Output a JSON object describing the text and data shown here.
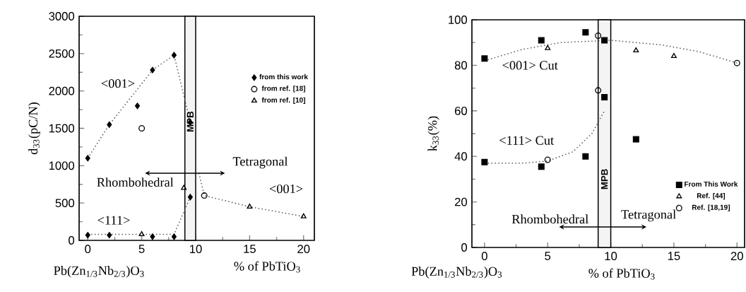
{
  "chart_data": [
    {
      "type": "scatter",
      "xlabel": "% of PbTiO$_{3}$",
      "ylabel": "d$_{33}$(pC/N)",
      "xlim": [
        -0.8,
        21
      ],
      "ylim": [
        0,
        3000
      ],
      "xticks": [
        0,
        5,
        10,
        15,
        20
      ],
      "yticks": [
        0,
        500,
        1000,
        1500,
        2000,
        2500,
        3000
      ],
      "legend": "right",
      "grid": false,
      "series": [
        {
          "name": "from this work",
          "marker": "diamond",
          "color": "#000000",
          "x": [
            0,
            2,
            4.6,
            6,
            8,
            9.5,
            9.5,
            0,
            2,
            6,
            8
          ],
          "values": [
            1100,
            1550,
            1800,
            2280,
            2480,
            1580,
            580,
            70,
            70,
            50,
            50
          ]
        },
        {
          "name": "from ref. [18]",
          "marker": "circle",
          "color": "#000000",
          "x": [
            5,
            10.8
          ],
          "values": [
            1500,
            600
          ]
        },
        {
          "name": "from ref. [10]",
          "marker": "triangle",
          "color": "#000000",
          "x": [
            5,
            8.9,
            15,
            20
          ],
          "values": [
            80,
            700,
            450,
            320
          ]
        },
        {
          "type": "line",
          "marker": "none",
          "line_style": "dotted",
          "color": "#555555",
          "x": [
            0,
            2,
            6,
            8,
            9.5
          ],
          "values": [
            1100,
            1550,
            2280,
            2480,
            1580
          ]
        },
        {
          "type": "line",
          "marker": "none",
          "line_style": "dotted",
          "color": "#555555",
          "x": [
            0,
            8,
            9.5
          ],
          "values": [
            80,
            80,
            580
          ]
        },
        {
          "type": "line",
          "marker": "none",
          "line_style": "dotted",
          "color": "#555555",
          "x": [
            10.3,
            10.8,
            15,
            20
          ],
          "values": [
            900,
            600,
            450,
            320
          ]
        }
      ],
      "bands": [
        {
          "axis": "x",
          "from": 9,
          "to": 10,
          "label": "MPB",
          "color": "#f4f4f4"
        }
      ],
      "annotations": [
        "<001>",
        "<111>",
        "Rhombohedral",
        "Tetragonal",
        "<001>",
        "Pb(Zn$_{1/3}$Nb$_{2/3}$)O$_{3}$"
      ]
    },
    {
      "type": "scatter",
      "xlabel": "% of PbTiO$_{3}$",
      "ylabel": "k$_{33}$(%)",
      "xlim": [
        -1,
        20.6
      ],
      "ylim": [
        0,
        100
      ],
      "xticks": [
        0,
        5,
        10,
        15,
        20
      ],
      "yticks": [
        0,
        20,
        40,
        60,
        80,
        100
      ],
      "legend": "bottom right",
      "grid": false,
      "series": [
        {
          "name": "From This Work",
          "marker": "square",
          "color": "#000000",
          "x": [
            0,
            4.5,
            8,
            9.5,
            0,
            4.5,
            8,
            9.5,
            12
          ],
          "values": [
            83,
            91,
            94.5,
            91,
            37.5,
            35.5,
            40,
            66,
            47.5
          ]
        },
        {
          "name": "Ref. [44]",
          "marker": "triangle",
          "color": "#000000",
          "x": [
            5,
            12,
            15
          ],
          "values": [
            87.5,
            86.5,
            84
          ]
        },
        {
          "name": "Ref. [18,19]",
          "marker": "circle",
          "color": "#000000",
          "x": [
            9,
            9,
            5,
            20
          ],
          "values": [
            93,
            69,
            38.5,
            81
          ]
        },
        {
          "type": "line",
          "marker": "none",
          "line_style": "dotted",
          "color": "#555555",
          "x": [
            0,
            3,
            6,
            10,
            14,
            17,
            20
          ],
          "values": [
            82,
            87,
            90,
            91,
            89,
            86,
            81
          ]
        },
        {
          "type": "line",
          "marker": "none",
          "line_style": "dotted",
          "color": "#555555",
          "x": [
            0,
            3,
            5,
            7,
            8.5,
            9.5
          ],
          "values": [
            37,
            37,
            38,
            42,
            50,
            60
          ]
        }
      ],
      "bands": [
        {
          "axis": "x",
          "from": 9,
          "to": 10,
          "label": "MPB",
          "color": "#f4f4f4"
        }
      ],
      "annotations": [
        "<001> Cut",
        "<111> Cut",
        "Rhombohedral",
        "Tetragonal",
        "Pb(Zn$_{1/3}$Nb$_{2/3}$)O$_{3}$"
      ]
    }
  ]
}
